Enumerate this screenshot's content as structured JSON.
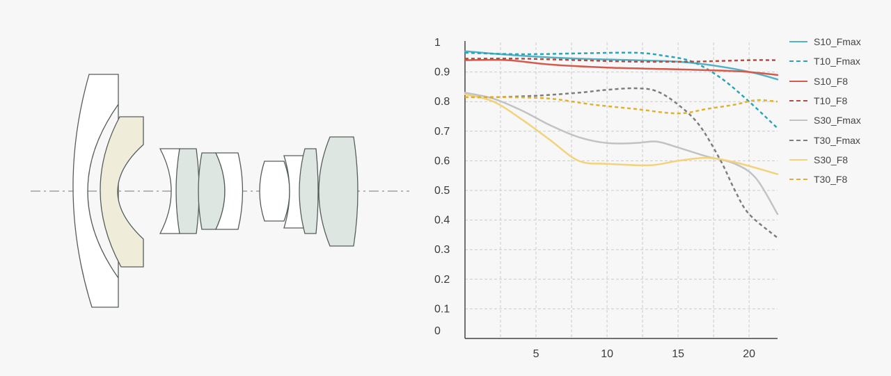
{
  "chart_data": {
    "type": "line",
    "title": "",
    "xlabel": "",
    "ylabel": "",
    "xlim": [
      0,
      22
    ],
    "ylim": [
      0,
      1
    ],
    "xticks": [
      "5",
      "10",
      "15",
      "20"
    ],
    "yticks": [
      "0",
      "0.1",
      "0.2",
      "0.3",
      "0.4",
      "0.5",
      "0.6",
      "0.7",
      "0.8",
      "0.9",
      "1"
    ],
    "grid": true,
    "legend_position": "right",
    "series": [
      {
        "name": "S10_Fmax",
        "color": "#4fb3c5",
        "dash": false,
        "points": [
          [
            0,
            0.97
          ],
          [
            4,
            0.955
          ],
          [
            8,
            0.945
          ],
          [
            12,
            0.94
          ],
          [
            15,
            0.935
          ],
          [
            17,
            0.925
          ],
          [
            19,
            0.91
          ],
          [
            20.5,
            0.895
          ],
          [
            22,
            0.875
          ]
        ]
      },
      {
        "name": "T10_Fmax",
        "color": "#2aa5b6",
        "dash": true,
        "points": [
          [
            0,
            0.965
          ],
          [
            4,
            0.96
          ],
          [
            8,
            0.963
          ],
          [
            12,
            0.965
          ],
          [
            14,
            0.955
          ],
          [
            16,
            0.935
          ],
          [
            18,
            0.88
          ],
          [
            20,
            0.8
          ],
          [
            22,
            0.71
          ]
        ]
      },
      {
        "name": "S10_F8",
        "color": "#d45a4e",
        "dash": false,
        "points": [
          [
            0,
            0.94
          ],
          [
            3,
            0.94
          ],
          [
            6,
            0.925
          ],
          [
            10,
            0.915
          ],
          [
            14,
            0.91
          ],
          [
            18,
            0.905
          ],
          [
            20,
            0.9
          ],
          [
            22,
            0.89
          ]
        ]
      },
      {
        "name": "T10_F8",
        "color": "#b84a40",
        "dash": true,
        "points": [
          [
            0,
            0.945
          ],
          [
            4,
            0.945
          ],
          [
            8,
            0.94
          ],
          [
            12,
            0.935
          ],
          [
            16,
            0.935
          ],
          [
            20,
            0.94
          ],
          [
            22,
            0.94
          ]
        ]
      },
      {
        "name": "S30_Fmax",
        "color": "#c2c2c6",
        "dash": false,
        "points": [
          [
            0,
            0.83
          ],
          [
            2,
            0.81
          ],
          [
            4,
            0.77
          ],
          [
            6,
            0.72
          ],
          [
            8,
            0.68
          ],
          [
            10,
            0.66
          ],
          [
            12,
            0.66
          ],
          [
            13.5,
            0.665
          ],
          [
            15,
            0.645
          ],
          [
            17,
            0.615
          ],
          [
            19,
            0.59
          ],
          [
            20.5,
            0.54
          ],
          [
            22,
            0.42
          ]
        ]
      },
      {
        "name": "T30_Fmax",
        "color": "#7d7d7d",
        "dash": true,
        "points": [
          [
            0,
            0.815
          ],
          [
            2,
            0.815
          ],
          [
            5,
            0.82
          ],
          [
            8,
            0.83
          ],
          [
            10,
            0.84
          ],
          [
            12,
            0.845
          ],
          [
            13.5,
            0.835
          ],
          [
            15,
            0.79
          ],
          [
            16.5,
            0.72
          ],
          [
            18,
            0.6
          ],
          [
            19,
            0.5
          ],
          [
            20,
            0.42
          ],
          [
            22,
            0.34
          ]
        ]
      },
      {
        "name": "S30_F8",
        "color": "#f2d27a",
        "dash": false,
        "points": [
          [
            0,
            0.825
          ],
          [
            2,
            0.8
          ],
          [
            4,
            0.74
          ],
          [
            6,
            0.67
          ],
          [
            8,
            0.6
          ],
          [
            10,
            0.59
          ],
          [
            13,
            0.585
          ],
          [
            15,
            0.6
          ],
          [
            17,
            0.61
          ],
          [
            19,
            0.595
          ],
          [
            22,
            0.555
          ]
        ]
      },
      {
        "name": "T30_F8",
        "color": "#dfb12e",
        "dash": true,
        "points": [
          [
            0,
            0.815
          ],
          [
            3,
            0.815
          ],
          [
            6,
            0.81
          ],
          [
            9,
            0.79
          ],
          [
            12,
            0.775
          ],
          [
            15,
            0.76
          ],
          [
            17,
            0.775
          ],
          [
            19,
            0.79
          ],
          [
            20.5,
            0.805
          ],
          [
            22,
            0.8
          ]
        ]
      }
    ]
  }
}
